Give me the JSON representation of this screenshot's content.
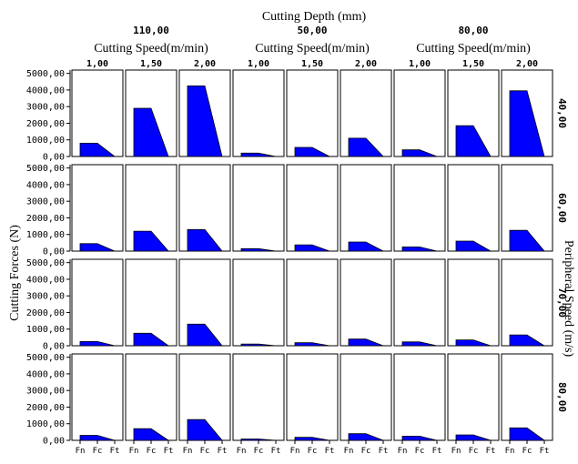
{
  "chart_data": {
    "type": "area",
    "title": "Cutting Depth (mm)",
    "col_group_label": "Cutting Speed(m/min)",
    "col_groups": [
      "110,00",
      "50,00",
      "80,00"
    ],
    "col_subgroups": [
      "1,00",
      "1,50",
      "2,00"
    ],
    "row_label": "Peripheral Speed (m/s)",
    "rows": [
      "40,00",
      "60,00",
      "70,00",
      "80,00"
    ],
    "ylabel": "Cutting Forces (N)",
    "categories": [
      "Fn",
      "Fc",
      "Ft"
    ],
    "yticks": [
      "0,00",
      "1000,00",
      "2000,00",
      "3000,00",
      "4000,00",
      "5000,00"
    ],
    "ylim": [
      0,
      5200
    ],
    "fill_color": "#0000ff",
    "panels": [
      [
        [
          800,
          800,
          0
        ],
        [
          2900,
          2900,
          0
        ],
        [
          4250,
          4250,
          0
        ],
        [
          200,
          200,
          0
        ],
        [
          550,
          550,
          0
        ],
        [
          1100,
          1100,
          0
        ],
        [
          400,
          400,
          0
        ],
        [
          1850,
          1850,
          0
        ],
        [
          3950,
          3950,
          0
        ]
      ],
      [
        [
          450,
          450,
          0
        ],
        [
          1200,
          1200,
          0
        ],
        [
          1300,
          1300,
          0
        ],
        [
          150,
          150,
          0
        ],
        [
          380,
          380,
          0
        ],
        [
          550,
          550,
          0
        ],
        [
          250,
          250,
          0
        ],
        [
          600,
          600,
          0
        ],
        [
          1250,
          1250,
          0
        ]
      ],
      [
        [
          250,
          250,
          0
        ],
        [
          750,
          750,
          0
        ],
        [
          1300,
          1300,
          0
        ],
        [
          100,
          100,
          0
        ],
        [
          180,
          180,
          0
        ],
        [
          400,
          400,
          0
        ],
        [
          230,
          230,
          0
        ],
        [
          350,
          350,
          0
        ],
        [
          650,
          650,
          0
        ]
      ],
      [
        [
          300,
          300,
          0
        ],
        [
          700,
          700,
          0
        ],
        [
          1250,
          1250,
          0
        ],
        [
          80,
          80,
          0
        ],
        [
          180,
          180,
          0
        ],
        [
          400,
          400,
          0
        ],
        [
          250,
          250,
          0
        ],
        [
          330,
          330,
          0
        ],
        [
          750,
          750,
          0
        ]
      ]
    ]
  }
}
